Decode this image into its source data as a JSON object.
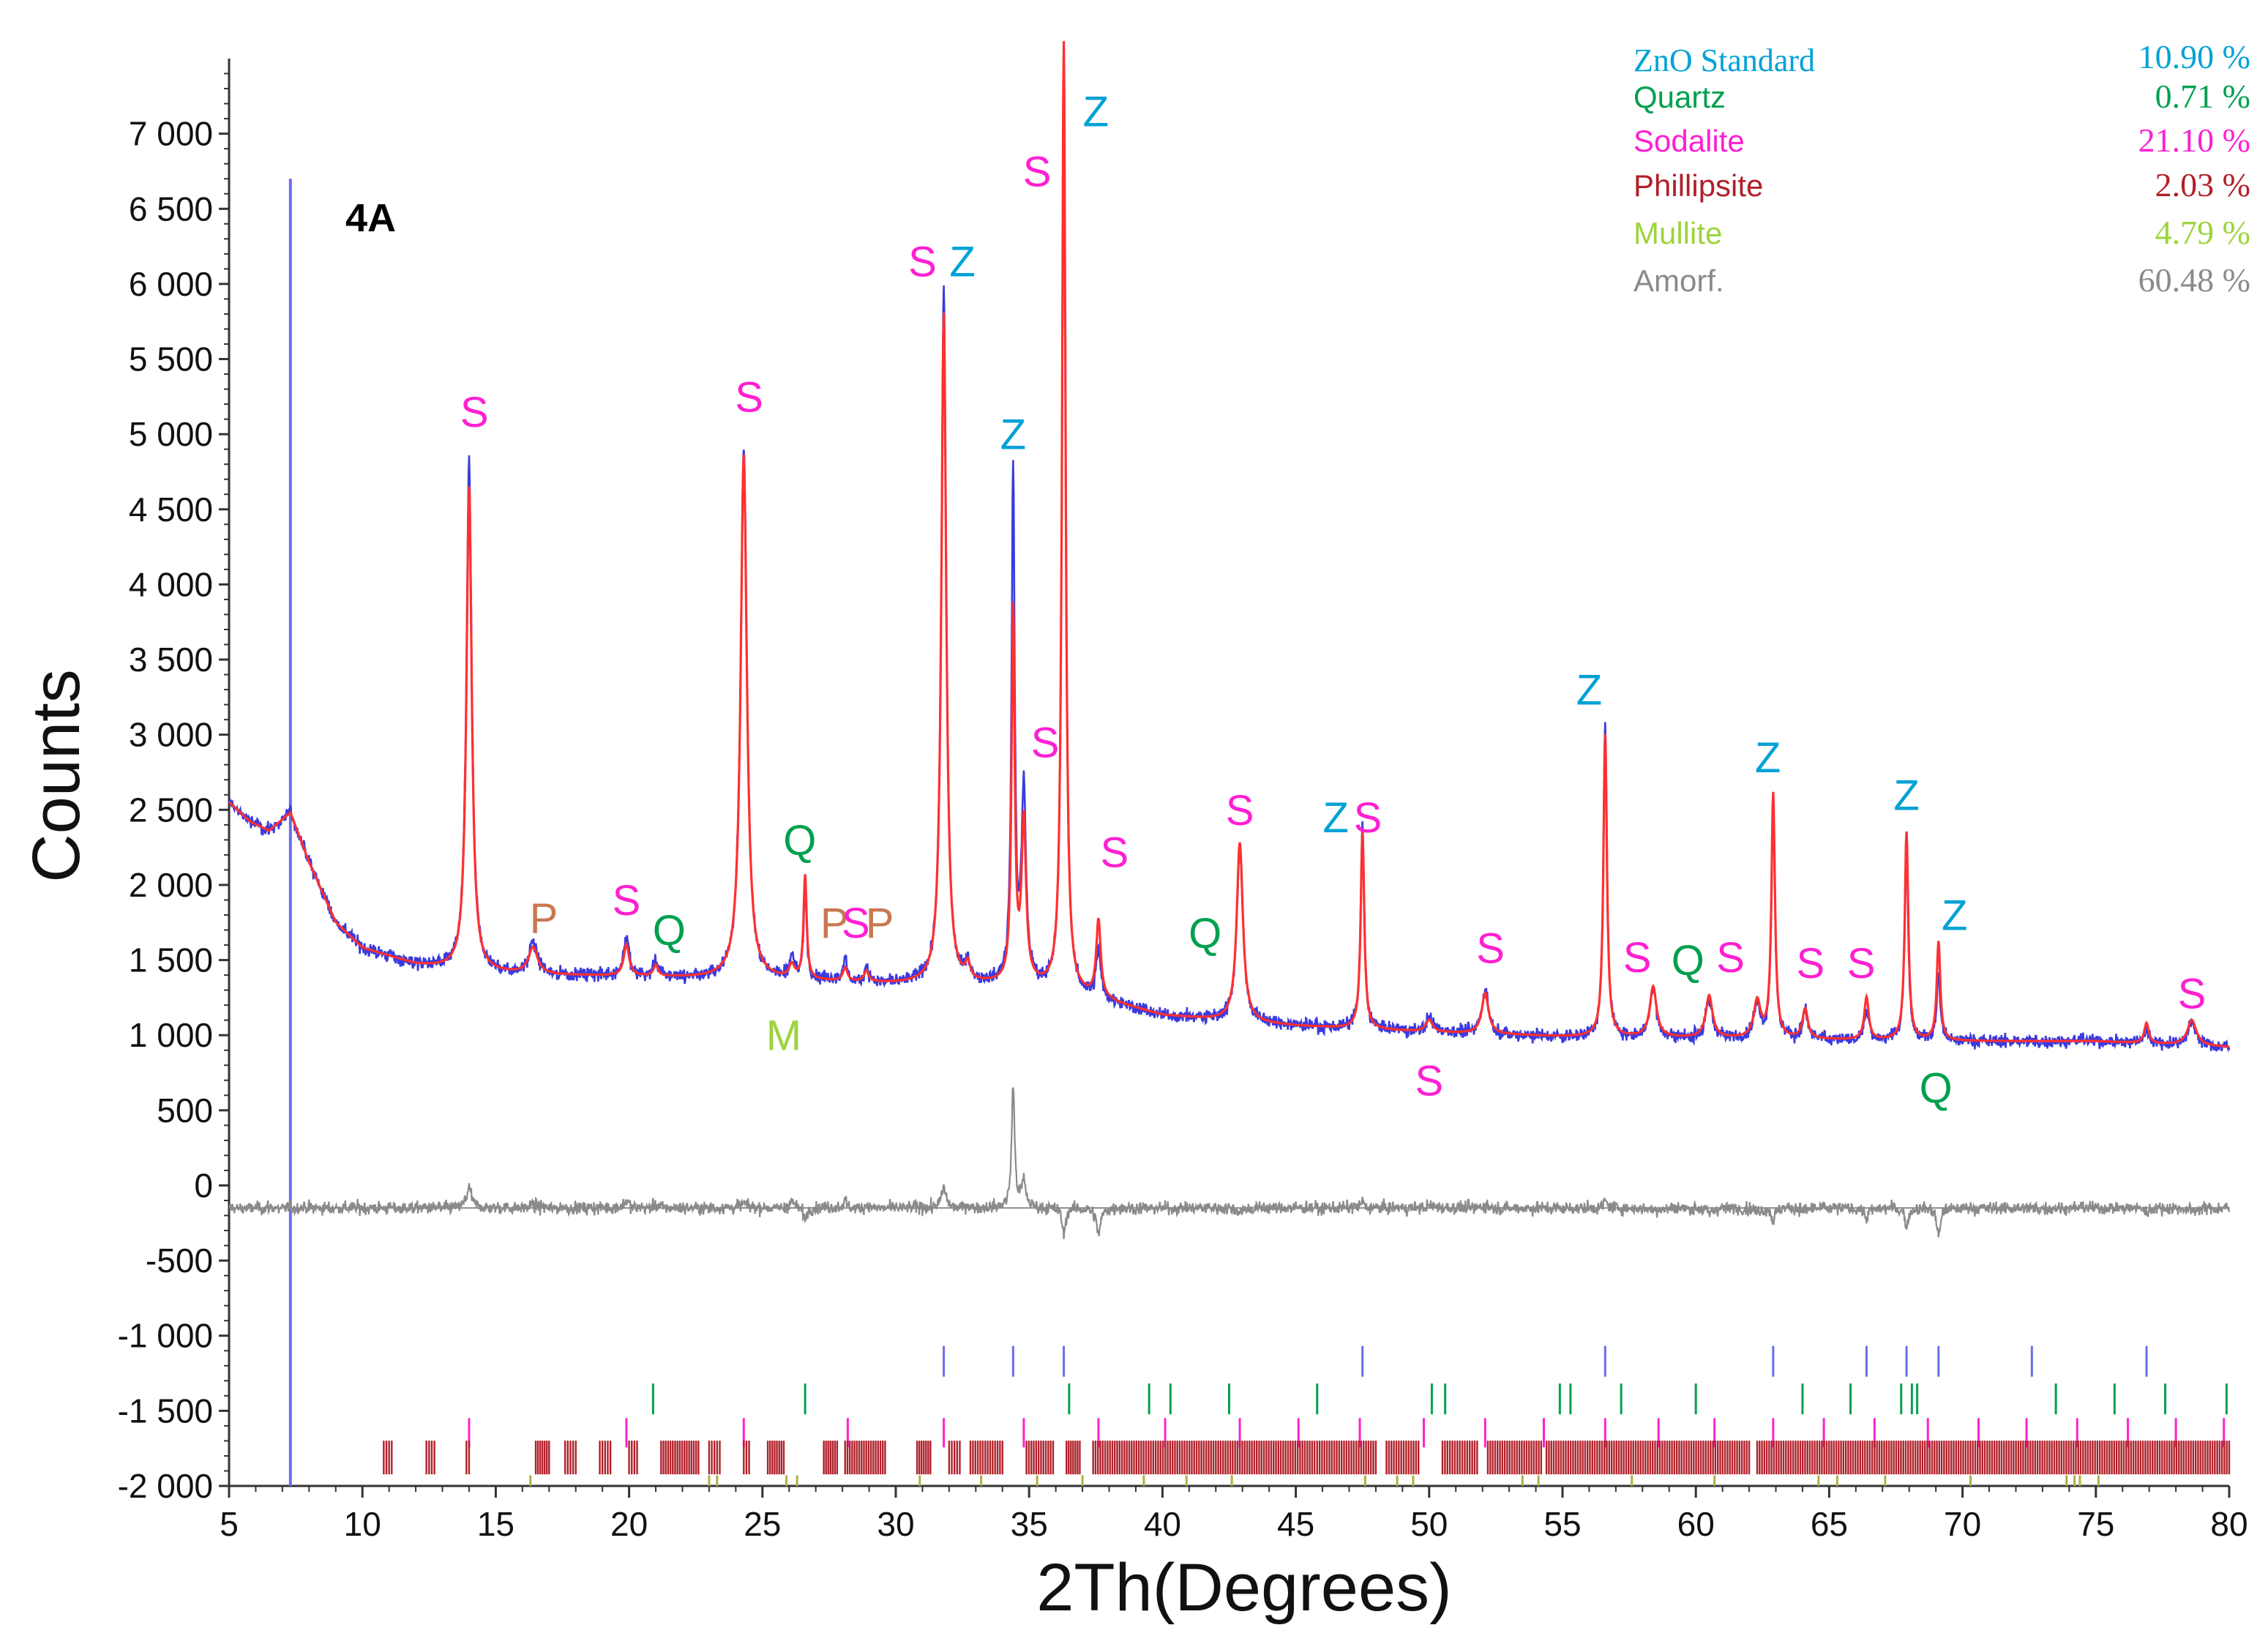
{
  "chart_data": {
    "type": "line",
    "title": "",
    "panel_label": "4A",
    "xlabel": "2Th(Degrees)",
    "ylabel": "Counts",
    "xlim": [
      5,
      80
    ],
    "ylim": [
      -2000,
      7500
    ],
    "x_ticks": [
      5,
      10,
      15,
      20,
      25,
      30,
      35,
      40,
      45,
      50,
      55,
      60,
      65,
      70,
      75,
      80
    ],
    "x_tick_labels": [
      "5",
      "10",
      "15",
      "20",
      "25",
      "30",
      "35",
      "40",
      "45",
      "50",
      "55",
      "60",
      "65",
      "70",
      "75",
      "80"
    ],
    "y_ticks": [
      -2000,
      -1500,
      -1000,
      -500,
      0,
      500,
      1000,
      1500,
      2000,
      2500,
      3000,
      3500,
      4000,
      4500,
      5000,
      5500,
      6000,
      6500,
      7000
    ],
    "y_tick_labels": [
      "-2 000",
      "-1 500",
      "-1 000",
      "-500",
      "0",
      "500",
      "1 000",
      "1 500",
      "2 000",
      "2 500",
      "3 000",
      "3 500",
      "4 000",
      "4 500",
      "5 000",
      "5 500",
      "6 000",
      "6 500",
      "7 000"
    ],
    "vertical_marker_x": 7.3,
    "colors": {
      "observed": "#3a3adf",
      "calculated": "#ff3030",
      "difference": "#8a8a8a",
      "marker": "#6b6bef",
      "zno": "#00a2d6",
      "quartz": "#00a050",
      "sodalite": "#ff1fd2",
      "phillipsite": "#b0202a",
      "phillipsite_label": "#c87850",
      "mullite": "#9cd43c",
      "mullite_tick": "#b0b040",
      "amorf": "#8a8a8a"
    },
    "baseline_points": [
      [
        5,
        2550
      ],
      [
        5.8,
        2420
      ],
      [
        6.5,
        2360
      ],
      [
        7.3,
        2480
      ],
      [
        8,
        2150
      ],
      [
        9,
        1750
      ],
      [
        10,
        1580
      ],
      [
        12,
        1470
      ],
      [
        14,
        1420
      ],
      [
        17,
        1400
      ],
      [
        20,
        1390
      ],
      [
        25,
        1370
      ],
      [
        30,
        1340
      ],
      [
        35,
        1330
      ],
      [
        38,
        1220
      ],
      [
        40,
        1130
      ],
      [
        42,
        1100
      ],
      [
        45,
        1060
      ],
      [
        50,
        1020
      ],
      [
        55,
        990
      ],
      [
        60,
        980
      ],
      [
        65,
        970
      ],
      [
        70,
        960
      ],
      [
        75,
        960
      ],
      [
        80,
        920
      ]
    ],
    "difference_offset": -150,
    "peaks": [
      {
        "x": 14.0,
        "obs": 4800,
        "calc": 4650,
        "w": 0.12
      },
      {
        "x": 16.4,
        "obs": 1600,
        "calc": 1580,
        "w": 0.2
      },
      {
        "x": 19.9,
        "obs": 1650,
        "calc": 1600,
        "w": 0.12
      },
      {
        "x": 21.0,
        "obs": 1480,
        "calc": 1460,
        "w": 0.1
      },
      {
        "x": 24.3,
        "obs": 4900,
        "calc": 4860,
        "w": 0.14
      },
      {
        "x": 26.1,
        "obs": 1500,
        "calc": 1450,
        "w": 0.12
      },
      {
        "x": 26.6,
        "obs": 1950,
        "calc": 2050,
        "w": 0.07
      },
      {
        "x": 28.1,
        "obs": 1480,
        "calc": 1440,
        "w": 0.1
      },
      {
        "x": 28.9,
        "obs": 1440,
        "calc": 1420,
        "w": 0.1
      },
      {
        "x": 31.8,
        "obs": 5950,
        "calc": 5800,
        "w": 0.11
      },
      {
        "x": 32.7,
        "obs": 1460,
        "calc": 1440,
        "w": 0.1
      },
      {
        "x": 34.4,
        "obs": 4750,
        "calc": 3800,
        "w": 0.07
      },
      {
        "x": 34.8,
        "obs": 2600,
        "calc": 2400,
        "w": 0.1
      },
      {
        "x": 36.3,
        "obs": 7400,
        "calc": 7600,
        "w": 0.08
      },
      {
        "x": 37.6,
        "obs": 1550,
        "calc": 1750,
        "w": 0.1
      },
      {
        "x": 42.9,
        "obs": 2250,
        "calc": 2280,
        "w": 0.14
      },
      {
        "x": 47.5,
        "obs": 2400,
        "calc": 2350,
        "w": 0.08
      },
      {
        "x": 50.0,
        "obs": 1120,
        "calc": 1100,
        "w": 0.15
      },
      {
        "x": 52.1,
        "obs": 1300,
        "calc": 1280,
        "w": 0.15
      },
      {
        "x": 56.6,
        "obs": 3050,
        "calc": 3000,
        "w": 0.08
      },
      {
        "x": 58.4,
        "obs": 1300,
        "calc": 1320,
        "w": 0.15
      },
      {
        "x": 60.5,
        "obs": 1220,
        "calc": 1260,
        "w": 0.15
      },
      {
        "x": 62.3,
        "obs": 1200,
        "calc": 1220,
        "w": 0.15
      },
      {
        "x": 62.9,
        "obs": 2500,
        "calc": 2600,
        "w": 0.08
      },
      {
        "x": 64.1,
        "obs": 1150,
        "calc": 1170,
        "w": 0.12
      },
      {
        "x": 66.4,
        "obs": 1180,
        "calc": 1250,
        "w": 0.1
      },
      {
        "x": 67.9,
        "obs": 2200,
        "calc": 2350,
        "w": 0.08
      },
      {
        "x": 69.1,
        "obs": 1400,
        "calc": 1620,
        "w": 0.08
      },
      {
        "x": 76.9,
        "obs": 1050,
        "calc": 1080,
        "w": 0.1
      },
      {
        "x": 78.6,
        "obs": 1080,
        "calc": 1100,
        "w": 0.2
      }
    ],
    "annotations": [
      {
        "text": "S",
        "x": 14.2,
        "y": 5050,
        "phase": "sodalite"
      },
      {
        "text": "P",
        "x": 16.8,
        "y": 1680,
        "phase": "phillipsite_label"
      },
      {
        "text": "S",
        "x": 19.9,
        "y": 1800,
        "phase": "sodalite"
      },
      {
        "text": "Q",
        "x": 21.5,
        "y": 1600,
        "phase": "quartz"
      },
      {
        "text": "S",
        "x": 24.5,
        "y": 5150,
        "phase": "sodalite"
      },
      {
        "text": "Q",
        "x": 26.4,
        "y": 2200,
        "phase": "quartz"
      },
      {
        "text": "M",
        "x": 25.8,
        "y": 900,
        "phase": "mullite"
      },
      {
        "text": "P",
        "x": 27.7,
        "y": 1650,
        "phase": "phillipsite_label"
      },
      {
        "text": "S",
        "x": 28.5,
        "y": 1650,
        "phase": "sodalite"
      },
      {
        "text": "P",
        "x": 29.4,
        "y": 1650,
        "phase": "phillipsite_label"
      },
      {
        "text": "S",
        "x": 31.0,
        "y": 6050,
        "phase": "sodalite"
      },
      {
        "text": "Z",
        "x": 32.5,
        "y": 6050,
        "phase": "zno"
      },
      {
        "text": "Z",
        "x": 34.4,
        "y": 4900,
        "phase": "zno"
      },
      {
        "text": "S",
        "x": 35.6,
        "y": 2850,
        "phase": "sodalite"
      },
      {
        "text": "S",
        "x": 35.3,
        "y": 6650,
        "phase": "sodalite"
      },
      {
        "text": "Z",
        "x": 37.5,
        "y": 7050,
        "phase": "zno"
      },
      {
        "text": "S",
        "x": 38.2,
        "y": 2120,
        "phase": "sodalite"
      },
      {
        "text": "Q",
        "x": 41.6,
        "y": 1580,
        "phase": "quartz"
      },
      {
        "text": "S",
        "x": 42.9,
        "y": 2400,
        "phase": "sodalite"
      },
      {
        "text": "Z",
        "x": 46.5,
        "y": 2350,
        "phase": "zno"
      },
      {
        "text": "S",
        "x": 47.7,
        "y": 2350,
        "phase": "sodalite"
      },
      {
        "text": "S",
        "x": 50.0,
        "y": 600,
        "phase": "sodalite"
      },
      {
        "text": "S",
        "x": 52.3,
        "y": 1480,
        "phase": "sodalite"
      },
      {
        "text": "Z",
        "x": 56.0,
        "y": 3200,
        "phase": "zno"
      },
      {
        "text": "S",
        "x": 57.8,
        "y": 1420,
        "phase": "sodalite"
      },
      {
        "text": "Q",
        "x": 59.7,
        "y": 1400,
        "phase": "quartz"
      },
      {
        "text": "S",
        "x": 61.3,
        "y": 1420,
        "phase": "sodalite"
      },
      {
        "text": "Z",
        "x": 62.7,
        "y": 2750,
        "phase": "zno"
      },
      {
        "text": "S",
        "x": 64.3,
        "y": 1380,
        "phase": "sodalite"
      },
      {
        "text": "S",
        "x": 66.2,
        "y": 1380,
        "phase": "sodalite"
      },
      {
        "text": "Z",
        "x": 67.9,
        "y": 2500,
        "phase": "zno"
      },
      {
        "text": "Z",
        "x": 69.7,
        "y": 1700,
        "phase": "zno"
      },
      {
        "text": "Q",
        "x": 69.0,
        "y": 550,
        "phase": "quartz"
      },
      {
        "text": "S",
        "x": 78.6,
        "y": 1180,
        "phase": "sodalite"
      }
    ],
    "legend": [
      {
        "name": "ZnO Standard",
        "value": "10.90 %",
        "phase": "zno"
      },
      {
        "name": "Quartz",
        "value": "0.71 %",
        "phase": "quartz"
      },
      {
        "name": "Sodalite",
        "value": "21.10 %",
        "phase": "sodalite"
      },
      {
        "name": "Phillipsite",
        "value": "2.03 %",
        "phase": "phillipsite"
      },
      {
        "name": "Mullite",
        "value": "4.79 %",
        "phase": "mullite"
      },
      {
        "name": "Amorf.",
        "value": "60.48 %",
        "phase": "amorf"
      }
    ],
    "reflection_ticks": {
      "zno": [
        31.8,
        34.4,
        36.3,
        47.5,
        56.6,
        62.9,
        66.4,
        67.9,
        69.1,
        72.6,
        76.9
      ],
      "quartz": [
        20.9,
        26.6,
        36.5,
        39.5,
        40.3,
        42.5,
        45.8,
        50.1,
        50.6,
        54.9,
        55.3,
        57.2,
        60.0,
        64.0,
        65.8,
        67.7,
        68.1,
        68.3,
        73.5,
        75.7,
        77.6,
        79.9
      ],
      "sodalite": [
        14.0,
        19.9,
        24.3,
        28.2,
        31.8,
        34.8,
        37.6,
        40.1,
        42.9,
        45.1,
        47.4,
        49.8,
        52.1,
        54.3,
        56.6,
        58.6,
        60.7,
        62.9,
        64.8,
        66.7,
        68.7,
        70.6,
        72.4,
        74.3,
        76.2,
        78.0,
        79.8
      ],
      "phillipsite_dense": [
        [
          10.8,
          11.1
        ],
        [
          12.4,
          12.7
        ],
        [
          13.9,
          14.0
        ],
        [
          16.5,
          17.0
        ],
        [
          17.6,
          18.0
        ],
        [
          18.9,
          19.3
        ],
        [
          20.0,
          20.3
        ],
        [
          21.2,
          22.6
        ],
        [
          23.0,
          23.4
        ],
        [
          24.3,
          24.5
        ],
        [
          25.2,
          25.8
        ],
        [
          27.3,
          27.8
        ],
        [
          28.1,
          29.6
        ],
        [
          30.8,
          31.3
        ],
        [
          32.0,
          32.4
        ],
        [
          32.8,
          34.0
        ],
        [
          34.9,
          35.9
        ],
        [
          36.4,
          36.9
        ],
        [
          37.4,
          45.7
        ],
        [
          45.8,
          48.0
        ],
        [
          48.4,
          49.6
        ],
        [
          50.5,
          51.8
        ],
        [
          52.2,
          54.2
        ],
        [
          54.4,
          62.0
        ],
        [
          62.3,
          80.0
        ]
      ],
      "mullite": [
        16.3,
        23.0,
        23.3,
        25.9,
        26.3,
        30.9,
        33.2,
        35.3,
        37.0,
        39.3,
        40.9,
        42.6,
        47.6,
        48.8,
        49.4,
        53.5,
        54.1,
        57.6,
        60.7,
        64.6,
        65.3,
        67.1,
        70.3,
        73.9,
        74.2,
        74.4,
        75.1
      ]
    }
  }
}
